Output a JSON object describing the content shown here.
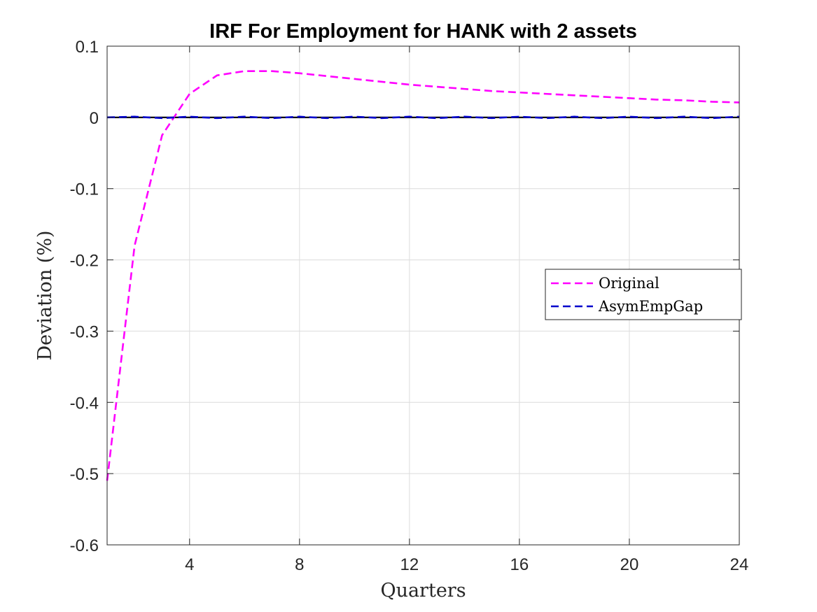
{
  "chart_data": {
    "type": "line",
    "title": "IRF For Employment for HANK with 2 assets",
    "xlabel": "Quarters",
    "ylabel": "Deviation (%)",
    "xlim": [
      1,
      24
    ],
    "ylim": [
      -0.6,
      0.1
    ],
    "xticks": [
      4,
      8,
      12,
      16,
      20,
      24
    ],
    "xtick_labels": [
      "4",
      "8",
      "12",
      "16",
      "20",
      "24"
    ],
    "yticks": [
      0.1,
      0,
      -0.1,
      -0.2,
      -0.3,
      -0.4,
      -0.5,
      -0.6
    ],
    "ytick_labels": [
      "0.1",
      "0",
      "-0.1",
      "-0.2",
      "-0.3",
      "-0.4",
      "-0.5",
      "-0.6"
    ],
    "grid": true,
    "legend": {
      "position": "right",
      "entries": [
        "Original",
        "AsymEmpGap"
      ]
    },
    "x": [
      1,
      2,
      3,
      4,
      5,
      6,
      7,
      8,
      9,
      10,
      11,
      12,
      13,
      14,
      15,
      16,
      17,
      18,
      19,
      20,
      21,
      22,
      23,
      24
    ],
    "series": [
      {
        "name": "Original",
        "color": "#ff00ff",
        "style": "dashed",
        "values": [
          -0.51,
          -0.18,
          -0.025,
          0.033,
          0.059,
          0.065,
          0.065,
          0.062,
          0.058,
          0.054,
          0.05,
          0.046,
          0.043,
          0.04,
          0.037,
          0.035,
          0.033,
          0.031,
          0.029,
          0.027,
          0.025,
          0.024,
          0.022,
          0.021
        ]
      },
      {
        "name": "AsymEmpGap",
        "color": "#0000cc",
        "style": "dashed",
        "values": [
          0,
          0.001,
          -0.001,
          0.001,
          -0.001,
          0.001,
          -0.001,
          0.001,
          -0.001,
          0.001,
          -0.001,
          0.001,
          -0.001,
          0.001,
          -0.001,
          0.001,
          -0.001,
          0.001,
          -0.001,
          0.001,
          -0.001,
          0.001,
          -0.001,
          0.001
        ]
      }
    ],
    "reference_line": {
      "y": 0,
      "color": "#000000"
    }
  }
}
